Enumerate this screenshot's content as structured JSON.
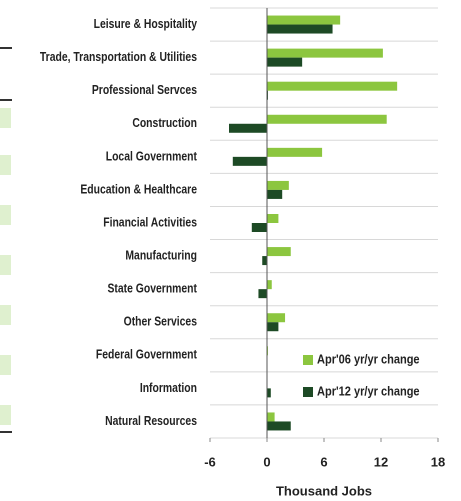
{
  "chart_data": {
    "type": "bar",
    "orientation": "horizontal",
    "categories": [
      "Leisure & Hospitality",
      "Trade, Transportation & Utilities",
      "Professional Servces",
      "Construction",
      "Local Government",
      "Education & Healthcare",
      "Financial Activities",
      "Manufacturing",
      "State Government",
      "Other Services",
      "Federal Government",
      "Information",
      "Natural Resources"
    ],
    "series": [
      {
        "name": "Apr'06 yr/yr change",
        "color": "#8cc63f",
        "values": [
          7.7,
          12.2,
          13.7,
          12.6,
          5.8,
          2.3,
          1.2,
          2.5,
          0.5,
          1.9,
          0.1,
          0,
          0.8
        ]
      },
      {
        "name": "Apr'12 yr/yr change",
        "color": "#1d4a25",
        "values": [
          6.9,
          3.7,
          0.1,
          -4.0,
          -3.6,
          1.6,
          -1.6,
          -0.5,
          -0.9,
          1.2,
          0,
          0.4,
          2.5
        ]
      }
    ],
    "xlabel": "Thousand Jobs",
    "xlim": [
      -6,
      18
    ],
    "xticks": [
      -6,
      0,
      6,
      12,
      18
    ],
    "legend": "lower right"
  }
}
